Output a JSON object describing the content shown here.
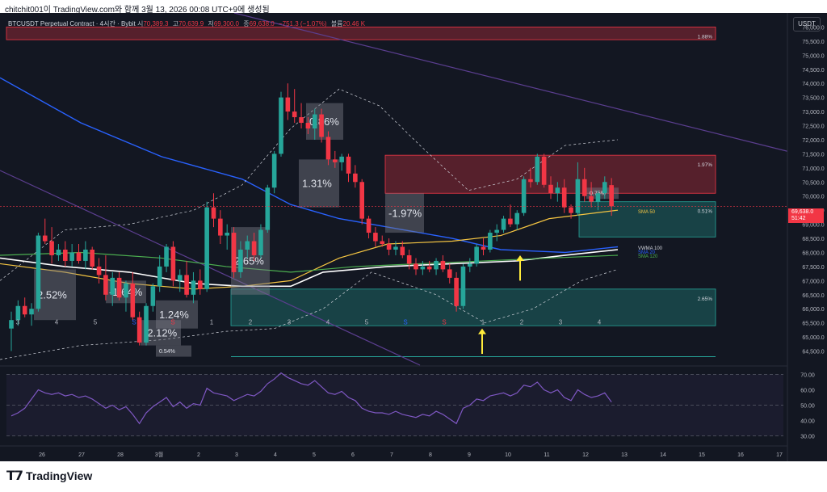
{
  "caption": "chitchit001이 TradingView.com와 함께 3월 13, 2026 00:08 UTC+9에 생성됨",
  "currency_badge": "USDT",
  "legend": {
    "symbol": "BTCUSDT Perpetual Contract · 4시간 · Bybit",
    "open_label": "시",
    "open_value": "70,389.3",
    "high_label": "고",
    "high_value": "70,639.9",
    "low_label": "저",
    "low_value": "69,300.0",
    "close_label": "종",
    "close_value": "69,638.0",
    "change": "−751.3 (−1.07%)",
    "volume_label": "볼륨",
    "volume_value": "20.46 K"
  },
  "current_price": {
    "value": "69,638.0",
    "countdown": "51:42"
  },
  "colors": {
    "background": "#131722",
    "bull": "#26a69a",
    "bear": "#f23645",
    "vwma": "#2962ff",
    "sma50": "#f5c542",
    "sma120": "#4caf50",
    "white_ma": "#ffffff",
    "rsi": "#7e57c2"
  },
  "price_axis": {
    "min": 64000,
    "max": 76500,
    "labels": [
      "76,000.0",
      "75,500.0",
      "75,000.0",
      "74,500.0",
      "74,000.0",
      "73,500.0",
      "73,000.0",
      "72,500.0",
      "72,000.0",
      "71,500.0",
      "71,000.0",
      "70,500.0",
      "70,000.0",
      "69,500.0",
      "69,000.0",
      "68,500.0",
      "68,000.0",
      "67,500.0",
      "67,000.0",
      "66,500.0",
      "66,000.0",
      "65,500.0",
      "65,000.0",
      "64,500.0"
    ]
  },
  "rsi_axis": {
    "labels": [
      "70.00",
      "60.00",
      "50.00",
      "40.00",
      "30.00"
    ]
  },
  "time_axis": [
    {
      "label": "26",
      "x": 52
    },
    {
      "label": "27",
      "x": 101
    },
    {
      "label": "28",
      "x": 149
    },
    {
      "label": "3월",
      "x": 197
    },
    {
      "label": "2",
      "x": 246
    },
    {
      "label": "3",
      "x": 293
    },
    {
      "label": "4",
      "x": 341
    },
    {
      "label": "5",
      "x": 389
    },
    {
      "label": "6",
      "x": 437
    },
    {
      "label": "7",
      "x": 485
    },
    {
      "label": "8",
      "x": 533
    },
    {
      "label": "9",
      "x": 581
    },
    {
      "label": "10",
      "x": 629
    },
    {
      "label": "11",
      "x": 677
    },
    {
      "label": "12",
      "x": 725
    },
    {
      "label": "13",
      "x": 773
    },
    {
      "label": "14",
      "x": 821
    },
    {
      "label": "15",
      "x": 869
    },
    {
      "label": "16",
      "x": 917
    },
    {
      "label": "17",
      "x": 965
    }
  ],
  "zones": [
    {
      "name": "zone-top-red",
      "kind": "bear",
      "label": "1.88%"
    },
    {
      "name": "zone-resistance-red",
      "kind": "bear",
      "label": "1.97%"
    },
    {
      "name": "zone-support-green",
      "kind": "bull",
      "label": "0.51%"
    },
    {
      "name": "zone-demand-green",
      "kind": "bull",
      "label": "2.65%"
    }
  ],
  "move_labels": [
    "2.52%",
    "-1.64%",
    "1.24%",
    "-2.12%",
    "0.54%",
    "2.65%",
    "1.31%",
    "0.86%",
    "-1.97%",
    "0.75%"
  ],
  "ma_labels": [
    "SMA 50",
    "VWMA 100",
    "SMA 20",
    "SMA 120"
  ],
  "count_labels": [
    "3",
    "4",
    "5",
    "S",
    "S",
    "1",
    "2",
    "3",
    "4",
    "5",
    "S",
    "S",
    "1",
    "2",
    "3",
    "4"
  ],
  "chart_data": {
    "type": "candlestick",
    "interval": "4h",
    "price_range": [
      64000,
      76500
    ],
    "candles": [
      [
        65300,
        65900,
        64500,
        65600
      ],
      [
        65600,
        66300,
        65400,
        66100
      ],
      [
        66100,
        66400,
        65700,
        65800
      ],
      [
        65800,
        66200,
        65400,
        66000
      ],
      [
        66000,
        68700,
        65900,
        68600
      ],
      [
        68600,
        69200,
        68300,
        68400
      ],
      [
        68400,
        68900,
        67600,
        67900
      ],
      [
        67900,
        68300,
        67700,
        68100
      ],
      [
        68100,
        68400,
        67500,
        67700
      ],
      [
        67700,
        68300,
        67500,
        68000
      ],
      [
        68000,
        68300,
        67600,
        67700
      ],
      [
        67700,
        68400,
        67400,
        68100
      ],
      [
        68100,
        68200,
        67400,
        67500
      ],
      [
        67500,
        67800,
        66900,
        67200
      ],
      [
        67200,
        67900,
        66300,
        66500
      ],
      [
        66500,
        67300,
        66100,
        67100
      ],
      [
        67100,
        67300,
        66300,
        66400
      ],
      [
        66400,
        67000,
        65900,
        66900
      ],
      [
        66900,
        67300,
        65600,
        65700
      ],
      [
        65700,
        65900,
        64700,
        64800
      ],
      [
        64800,
        66200,
        64700,
        66100
      ],
      [
        66100,
        66900,
        65900,
        66800
      ],
      [
        66800,
        67900,
        66600,
        67500
      ],
      [
        67500,
        68300,
        67300,
        68200
      ],
      [
        68200,
        68400,
        66800,
        67000
      ],
      [
        67000,
        67400,
        66600,
        67200
      ],
      [
        67200,
        67700,
        66400,
        66500
      ],
      [
        66500,
        67300,
        66200,
        67000
      ],
      [
        67000,
        67400,
        66500,
        66700
      ],
      [
        66700,
        69800,
        66600,
        69600
      ],
      [
        69600,
        70100,
        68900,
        69200
      ],
      [
        69200,
        69500,
        68300,
        68600
      ],
      [
        68600,
        69000,
        68100,
        68700
      ],
      [
        68700,
        68900,
        67100,
        67300
      ],
      [
        67300,
        68400,
        67100,
        68100
      ],
      [
        68100,
        68600,
        67800,
        68400
      ],
      [
        68400,
        68700,
        67700,
        67900
      ],
      [
        67900,
        69000,
        67800,
        68800
      ],
      [
        68800,
        70400,
        68700,
        70300
      ],
      [
        70300,
        71600,
        70100,
        71500
      ],
      [
        71500,
        73700,
        71400,
        73500
      ],
      [
        73500,
        74000,
        72700,
        73000
      ],
      [
        73000,
        73800,
        72600,
        72800
      ],
      [
        72800,
        73300,
        72400,
        72600
      ],
      [
        72600,
        72800,
        72200,
        72400
      ],
      [
        72400,
        73100,
        72000,
        72900
      ],
      [
        72900,
        73100,
        71900,
        72100
      ],
      [
        72100,
        72300,
        71100,
        71300
      ],
      [
        71300,
        71600,
        71000,
        71200
      ],
      [
        71200,
        71500,
        70900,
        71400
      ],
      [
        71400,
        71500,
        70500,
        70800
      ],
      [
        70800,
        71100,
        70300,
        70500
      ],
      [
        70500,
        70600,
        69000,
        69200
      ],
      [
        69200,
        69300,
        68500,
        68700
      ],
      [
        68700,
        68900,
        68200,
        68400
      ],
      [
        68400,
        68600,
        68200,
        68300
      ],
      [
        68300,
        68500,
        67900,
        68100
      ],
      [
        68100,
        68400,
        67900,
        68200
      ],
      [
        68200,
        68400,
        67800,
        67900
      ],
      [
        67900,
        68100,
        67400,
        67600
      ],
      [
        67600,
        67800,
        67200,
        67400
      ],
      [
        67400,
        67700,
        67200,
        67500
      ],
      [
        67500,
        67700,
        67300,
        67400
      ],
      [
        67400,
        67800,
        67200,
        67700
      ],
      [
        67700,
        67900,
        67300,
        67400
      ],
      [
        67400,
        67600,
        66900,
        67100
      ],
      [
        67100,
        67300,
        65900,
        66100
      ],
      [
        66100,
        67600,
        66000,
        67500
      ],
      [
        67500,
        67800,
        67300,
        67600
      ],
      [
        67600,
        68300,
        67500,
        68200
      ],
      [
        68200,
        68500,
        67900,
        68100
      ],
      [
        68100,
        68800,
        68000,
        68700
      ],
      [
        68700,
        69000,
        68400,
        68800
      ],
      [
        68800,
        69300,
        68700,
        69200
      ],
      [
        69200,
        69700,
        68900,
        69000
      ],
      [
        69000,
        69500,
        68800,
        69400
      ],
      [
        69400,
        70700,
        69300,
        70600
      ],
      [
        70600,
        71000,
        70300,
        70500
      ],
      [
        70500,
        71500,
        70400,
        71400
      ],
      [
        71400,
        71500,
        70300,
        70400
      ],
      [
        70400,
        70700,
        69900,
        70100
      ],
      [
        70100,
        70500,
        69800,
        70300
      ],
      [
        70300,
        70600,
        69400,
        69600
      ],
      [
        69600,
        69700,
        69200,
        69400
      ],
      [
        69400,
        71200,
        69300,
        70600
      ],
      [
        70600,
        71000,
        69800,
        70000
      ],
      [
        70000,
        70500,
        69600,
        69800
      ],
      [
        69800,
        70200,
        69500,
        70100
      ],
      [
        70100,
        70700,
        69900,
        70500
      ],
      [
        70389.3,
        70639.9,
        69300,
        69638
      ]
    ],
    "rsi_range": [
      25,
      75
    ],
    "rsi": [
      43,
      45,
      48,
      54,
      60,
      58,
      57,
      58,
      56,
      57,
      55,
      56,
      54,
      51,
      48,
      50,
      47,
      49,
      44,
      38,
      45,
      49,
      52,
      55,
      49,
      52,
      48,
      51,
      50,
      61,
      58,
      57,
      56,
      53,
      55,
      57,
      56,
      59,
      64,
      67,
      71,
      68,
      66,
      64,
      63,
      66,
      62,
      58,
      57,
      59,
      55,
      53,
      48,
      46,
      45,
      45,
      44,
      46,
      44,
      43,
      42,
      44,
      43,
      46,
      44,
      41,
      38,
      48,
      50,
      54,
      53,
      56,
      57,
      58,
      56,
      58,
      63,
      62,
      65,
      60,
      58,
      60,
      55,
      53,
      60,
      57,
      55,
      56,
      58,
      52
    ]
  }
}
